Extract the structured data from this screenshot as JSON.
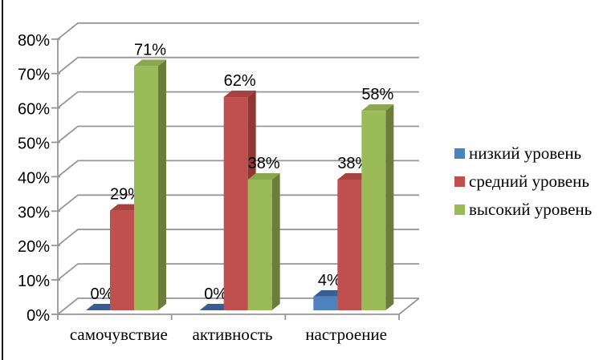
{
  "page": {
    "background_color": "#ffffff",
    "left_edge_line_color": "#1a1a1a"
  },
  "chart_data": {
    "type": "bar",
    "subtype": "3d-clustered-column",
    "title": "",
    "categories": [
      "самочувствие",
      "активность",
      "настроение"
    ],
    "series": [
      {
        "name": "низкий уровень",
        "color": "#4f81bd",
        "color_top": "#3a5c92",
        "color_side": "#2c4a71",
        "values": [
          0,
          0,
          4
        ]
      },
      {
        "name": "средний уровень",
        "color": "#c0504d",
        "color_top": "#a8423f",
        "color_side": "#8e3734",
        "values": [
          29,
          62,
          38
        ]
      },
      {
        "name": "высокий уровень",
        "color": "#9bbb59",
        "color_top": "#8aa74d",
        "color_side": "#6b7c3b",
        "values": [
          71,
          38,
          58
        ]
      }
    ],
    "value_labels_by_category": [
      [
        "0%",
        "29%",
        "71%"
      ],
      [
        "0%",
        "62%",
        "38%"
      ],
      [
        "4%",
        "38%",
        "58%"
      ]
    ],
    "y_axis": {
      "min": 0,
      "max": 80,
      "step": 10,
      "tick_labels": [
        "0%",
        "10%",
        "20%",
        "30%",
        "40%",
        "50%",
        "60%",
        "70%",
        "80%"
      ]
    },
    "legend": {
      "position": "right",
      "items": [
        "низкий уровень",
        "средний уровень",
        "высокий уровень"
      ]
    },
    "grid": true,
    "grid_color": "#969696",
    "axis_color": "#969696",
    "text_color": "#000000"
  }
}
